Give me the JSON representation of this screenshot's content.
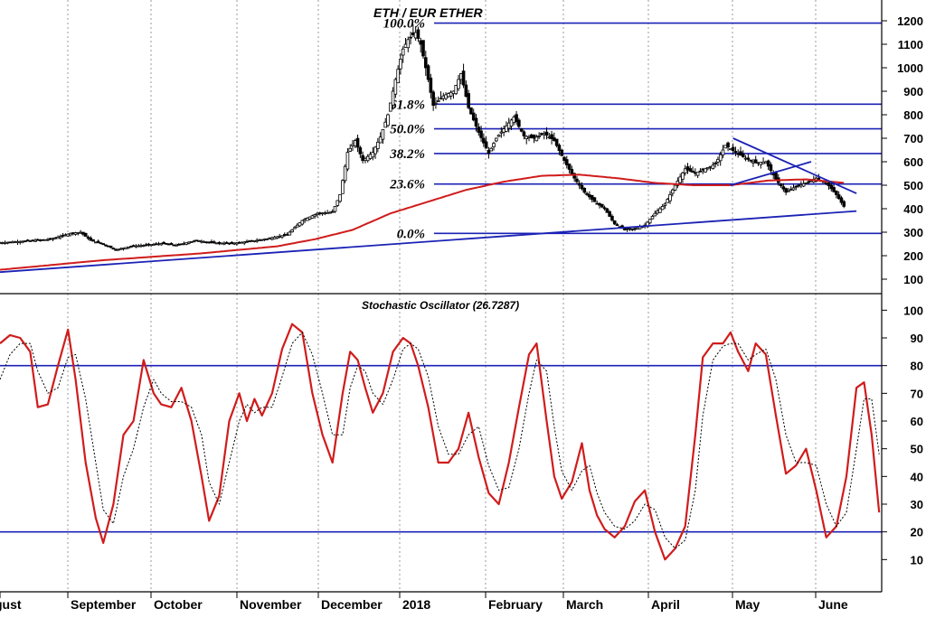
{
  "chart_data": [
    {
      "type": "candlestick",
      "title": "ETH / EUR ETHER",
      "ylim": [
        50,
        1250
      ],
      "yticks": [
        100,
        200,
        300,
        400,
        500,
        600,
        700,
        800,
        900,
        1000,
        1100,
        1200
      ],
      "grid": "vertical-dotted",
      "x_months": [
        "gust",
        "September",
        "October",
        "November",
        "December",
        "2018",
        "February",
        "March",
        "April",
        "May",
        "June"
      ],
      "fib_levels": [
        {
          "label": "100.0%",
          "value": 1190
        },
        {
          "label": "61.8%",
          "value": 845
        },
        {
          "label": "50.0%",
          "value": 740
        },
        {
          "label": "38.2%",
          "value": 635
        },
        {
          "label": "23.6%",
          "value": 505
        },
        {
          "label": "0.0%",
          "value": 295
        }
      ],
      "price_keypoints": [
        [
          0,
          255
        ],
        [
          10,
          262
        ],
        [
          20,
          270
        ],
        [
          28,
          295
        ],
        [
          32,
          300
        ],
        [
          36,
          265
        ],
        [
          42,
          245
        ],
        [
          46,
          225
        ],
        [
          52,
          240
        ],
        [
          58,
          245
        ],
        [
          64,
          252
        ],
        [
          70,
          245
        ],
        [
          78,
          265
        ],
        [
          84,
          255
        ],
        [
          92,
          252
        ],
        [
          100,
          262
        ],
        [
          106,
          272
        ],
        [
          114,
          290
        ],
        [
          120,
          350
        ],
        [
          126,
          380
        ],
        [
          132,
          385
        ],
        [
          135,
          460
        ],
        [
          138,
          640
        ],
        [
          141,
          690
        ],
        [
          144,
          605
        ],
        [
          148,
          640
        ],
        [
          151,
          705
        ],
        [
          154,
          800
        ],
        [
          157,
          950
        ],
        [
          160,
          1080
        ],
        [
          162,
          1120
        ],
        [
          165,
          1150
        ],
        [
          167,
          1100
        ],
        [
          170,
          950
        ],
        [
          172,
          840
        ],
        [
          176,
          880
        ],
        [
          180,
          900
        ],
        [
          183,
          975
        ],
        [
          186,
          830
        ],
        [
          190,
          725
        ],
        [
          194,
          635
        ],
        [
          197,
          700
        ],
        [
          200,
          740
        ],
        [
          204,
          790
        ],
        [
          208,
          710
        ],
        [
          212,
          700
        ],
        [
          216,
          720
        ],
        [
          220,
          690
        ],
        [
          224,
          605
        ],
        [
          228,
          530
        ],
        [
          232,
          470
        ],
        [
          236,
          430
        ],
        [
          240,
          400
        ],
        [
          244,
          335
        ],
        [
          248,
          310
        ],
        [
          252,
          315
        ],
        [
          256,
          330
        ],
        [
          260,
          380
        ],
        [
          264,
          420
        ],
        [
          268,
          500
        ],
        [
          272,
          570
        ],
        [
          276,
          550
        ],
        [
          280,
          570
        ],
        [
          284,
          590
        ],
        [
          288,
          670
        ],
        [
          292,
          640
        ],
        [
          296,
          615
        ],
        [
          300,
          595
        ],
        [
          304,
          600
        ],
        [
          308,
          525
        ],
        [
          312,
          470
        ],
        [
          316,
          495
        ],
        [
          320,
          510
        ],
        [
          324,
          530
        ],
        [
          328,
          510
        ],
        [
          332,
          460
        ],
        [
          335,
          410
        ]
      ],
      "moving_average_keypoints": [
        [
          0,
          140
        ],
        [
          40,
          180
        ],
        [
          80,
          210
        ],
        [
          110,
          240
        ],
        [
          125,
          270
        ],
        [
          140,
          310
        ],
        [
          155,
          380
        ],
        [
          170,
          430
        ],
        [
          185,
          480
        ],
        [
          200,
          515
        ],
        [
          215,
          540
        ],
        [
          230,
          545
        ],
        [
          245,
          530
        ],
        [
          260,
          510
        ],
        [
          275,
          500
        ],
        [
          290,
          500
        ],
        [
          305,
          520
        ],
        [
          320,
          525
        ],
        [
          335,
          510
        ]
      ],
      "trendlines": [
        {
          "from": [
            0,
            130
          ],
          "to": [
            340,
            390
          ]
        },
        {
          "from": [
            290,
            500
          ],
          "to": [
            322,
            600
          ]
        },
        {
          "from": [
            291,
            700
          ],
          "to": [
            340,
            465
          ]
        }
      ]
    },
    {
      "type": "line",
      "title": "Stochastic Oscillator (26.7287)",
      "ylim": [
        0,
        105
      ],
      "yticks": [
        10,
        20,
        30,
        40,
        50,
        60,
        70,
        80,
        90,
        100
      ],
      "reference_lines": [
        80,
        20
      ],
      "series": [
        {
          "line_style": "solid",
          "color": "#d01c1c",
          "points": [
            [
              0,
              88
            ],
            [
              4,
              91
            ],
            [
              8,
              90
            ],
            [
              12,
              85
            ],
            [
              15,
              65
            ],
            [
              19,
              66
            ],
            [
              23,
              80
            ],
            [
              27,
              93
            ],
            [
              30,
              75
            ],
            [
              34,
              45
            ],
            [
              38,
              25
            ],
            [
              41,
              16
            ],
            [
              45,
              30
            ],
            [
              49,
              55
            ],
            [
              53,
              60
            ],
            [
              57,
              82
            ],
            [
              61,
              70
            ],
            [
              64,
              66
            ],
            [
              68,
              65
            ],
            [
              72,
              72
            ],
            [
              76,
              60
            ],
            [
              80,
              40
            ],
            [
              83,
              24
            ],
            [
              87,
              33
            ],
            [
              91,
              60
            ],
            [
              95,
              70
            ],
            [
              98,
              60
            ],
            [
              101,
              68
            ],
            [
              104,
              62
            ],
            [
              108,
              70
            ],
            [
              112,
              86
            ],
            [
              116,
              95
            ],
            [
              120,
              92
            ],
            [
              124,
              70
            ],
            [
              128,
              55
            ],
            [
              132,
              45
            ],
            [
              136,
              70
            ],
            [
              139,
              85
            ],
            [
              142,
              82
            ],
            [
              145,
              72
            ],
            [
              148,
              63
            ],
            [
              152,
              70
            ],
            [
              156,
              85
            ],
            [
              160,
              90
            ],
            [
              163,
              88
            ],
            [
              166,
              80
            ],
            [
              170,
              65
            ],
            [
              174,
              45
            ],
            [
              178,
              45
            ],
            [
              182,
              50
            ],
            [
              186,
              63
            ],
            [
              190,
              47
            ],
            [
              194,
              34
            ],
            [
              198,
              30
            ],
            [
              202,
              45
            ],
            [
              206,
              65
            ],
            [
              210,
              84
            ],
            [
              213,
              88
            ],
            [
              217,
              60
            ],
            [
              220,
              40
            ],
            [
              223,
              32
            ],
            [
              227,
              38
            ],
            [
              231,
              52
            ],
            [
              234,
              35
            ],
            [
              237,
              26
            ],
            [
              240,
              21
            ],
            [
              244,
              18
            ],
            [
              248,
              22
            ],
            [
              252,
              31
            ],
            [
              256,
              35
            ],
            [
              260,
              20
            ],
            [
              264,
              10
            ],
            [
              268,
              14
            ],
            [
              272,
              22
            ],
            [
              276,
              55
            ],
            [
              279,
              83
            ],
            [
              283,
              88
            ],
            [
              287,
              88
            ],
            [
              290,
              92
            ],
            [
              293,
              85
            ],
            [
              297,
              78
            ],
            [
              300,
              88
            ],
            [
              304,
              84
            ],
            [
              308,
              62
            ],
            [
              312,
              41
            ],
            [
              316,
              44
            ],
            [
              320,
              50
            ],
            [
              324,
              35
            ],
            [
              328,
              18
            ],
            [
              332,
              22
            ],
            [
              336,
              40
            ],
            [
              340,
              72
            ],
            [
              343,
              74
            ],
            [
              346,
              55
            ],
            [
              349,
              27
            ]
          ]
        },
        {
          "line_style": "dashed",
          "color": "#000000",
          "points": [
            [
              0,
              75
            ],
            [
              4,
              84
            ],
            [
              8,
              88
            ],
            [
              12,
              88
            ],
            [
              15,
              78
            ],
            [
              19,
              70
            ],
            [
              23,
              72
            ],
            [
              27,
              83
            ],
            [
              30,
              84
            ],
            [
              34,
              68
            ],
            [
              38,
              45
            ],
            [
              41,
              28
            ],
            [
              45,
              23
            ],
            [
              49,
              40
            ],
            [
              53,
              50
            ],
            [
              57,
              65
            ],
            [
              61,
              75
            ],
            [
              64,
              70
            ],
            [
              68,
              67
            ],
            [
              72,
              67
            ],
            [
              76,
              65
            ],
            [
              80,
              55
            ],
            [
              83,
              38
            ],
            [
              87,
              30
            ],
            [
              91,
              45
            ],
            [
              95,
              60
            ],
            [
              98,
              66
            ],
            [
              101,
              63
            ],
            [
              104,
              65
            ],
            [
              108,
              65
            ],
            [
              112,
              76
            ],
            [
              116,
              88
            ],
            [
              120,
              92
            ],
            [
              124,
              84
            ],
            [
              128,
              70
            ],
            [
              132,
              55
            ],
            [
              136,
              55
            ],
            [
              139,
              72
            ],
            [
              142,
              80
            ],
            [
              145,
              78
            ],
            [
              148,
              70
            ],
            [
              152,
              66
            ],
            [
              156,
              75
            ],
            [
              160,
              86
            ],
            [
              163,
              88
            ],
            [
              166,
              86
            ],
            [
              170,
              76
            ],
            [
              174,
              58
            ],
            [
              178,
              48
            ],
            [
              182,
              48
            ],
            [
              186,
              55
            ],
            [
              190,
              58
            ],
            [
              194,
              44
            ],
            [
              198,
              35
            ],
            [
              202,
              36
            ],
            [
              206,
              50
            ],
            [
              210,
              70
            ],
            [
              213,
              82
            ],
            [
              217,
              78
            ],
            [
              220,
              58
            ],
            [
              223,
              42
            ],
            [
              227,
              35
            ],
            [
              231,
              42
            ],
            [
              234,
              44
            ],
            [
              237,
              34
            ],
            [
              240,
              27
            ],
            [
              244,
              22
            ],
            [
              248,
              21
            ],
            [
              252,
              24
            ],
            [
              256,
              30
            ],
            [
              260,
              28
            ],
            [
              264,
              18
            ],
            [
              268,
              14
            ],
            [
              272,
              17
            ],
            [
              276,
              35
            ],
            [
              279,
              62
            ],
            [
              283,
              82
            ],
            [
              287,
              87
            ],
            [
              290,
              88
            ],
            [
              293,
              88
            ],
            [
              297,
              82
            ],
            [
              300,
              84
            ],
            [
              304,
              86
            ],
            [
              308,
              75
            ],
            [
              312,
              55
            ],
            [
              316,
              45
            ],
            [
              320,
              45
            ],
            [
              324,
              44
            ],
            [
              328,
              30
            ],
            [
              332,
              22
            ],
            [
              336,
              27
            ],
            [
              340,
              50
            ],
            [
              343,
              68
            ],
            [
              346,
              68
            ],
            [
              349,
              48
            ]
          ]
        }
      ]
    }
  ]
}
